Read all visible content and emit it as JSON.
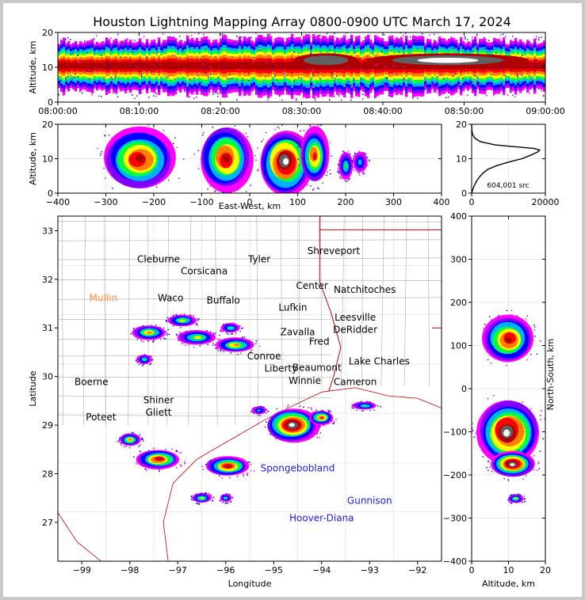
{
  "title": "Houston Lightning Mapping Array 0800-0900 UTC March 17, 2024",
  "colors": {
    "background": "#c8c8c8",
    "panel": "#ffffff",
    "density_scale": [
      "#ff00ff",
      "#8000ff",
      "#0000ff",
      "#00b0ff",
      "#00ff40",
      "#ffff00",
      "#ff8000",
      "#ff0000",
      "#b00000",
      "#606060",
      "#ffffff"
    ],
    "city_label": "#000000",
    "origin_city_label": "#ff8c40",
    "offshore_label": "#1a1aff",
    "state_line": "#cc0000",
    "county_line": "#aaaaaa"
  },
  "chart_data": [
    {
      "type": "heatmap",
      "panel": "altitude-time",
      "xlabel": "",
      "ylabel": "Altitude, km",
      "xticks": [
        "08:00:00",
        "08:10:00",
        "08:20:00",
        "08:30:00",
        "08:40:00",
        "08:50:00",
        "09:00:00"
      ],
      "ylim": [
        0,
        20
      ],
      "yticks": [
        "0",
        "10",
        "20"
      ],
      "x_minutes": [
        0,
        60
      ],
      "band": [
        {
          "minute": 0,
          "center_km": 10.5,
          "half_width_km": 7
        },
        {
          "minute": 15,
          "center_km": 10.5,
          "half_width_km": 7.5
        },
        {
          "minute": 30,
          "center_km": 10.5,
          "half_width_km": 8
        },
        {
          "minute": 45,
          "center_km": 10.5,
          "half_width_km": 7.5
        },
        {
          "minute": 60,
          "center_km": 10.5,
          "half_width_km": 7
        }
      ],
      "hotspots": [
        {
          "minute": 48,
          "altitude_km": 12,
          "half_width_min": 10,
          "half_height_km": 2,
          "level": 10
        },
        {
          "minute": 33,
          "altitude_km": 12,
          "half_width_min": 4,
          "half_height_km": 2,
          "level": 9
        }
      ]
    },
    {
      "type": "heatmap",
      "panel": "altitude-east-west",
      "xlabel": "East-West, km",
      "ylabel": "Altitude, km",
      "xlim": [
        -400,
        400
      ],
      "xticks": [
        "−400",
        "−300",
        "−200",
        "−100",
        "0",
        "100",
        "200",
        "300",
        "400"
      ],
      "ylim": [
        0,
        20
      ],
      "yticks": [
        "0",
        "10",
        "20"
      ],
      "cells": [
        {
          "x": -230,
          "y": 10,
          "rx": 75,
          "ry": 9,
          "peak": 8
        },
        {
          "x": -50,
          "y": 10,
          "rx": 55,
          "ry": 9.5,
          "peak": 8
        },
        {
          "x": 75,
          "y": 9,
          "rx": 55,
          "ry": 9.5,
          "peak": 10
        },
        {
          "x": 135,
          "y": 11,
          "rx": 30,
          "ry": 8,
          "peak": 7
        },
        {
          "x": 200,
          "y": 8,
          "rx": 15,
          "ry": 4,
          "peak": 4
        },
        {
          "x": 230,
          "y": 9,
          "rx": 15,
          "ry": 3,
          "peak": 3
        }
      ]
    },
    {
      "type": "line",
      "panel": "altitude-histogram",
      "xlim": [
        0,
        22000
      ],
      "xticks": [
        "0",
        "20000"
      ],
      "ylim": [
        0,
        20
      ],
      "yticks": [
        "0",
        "10",
        "20"
      ],
      "annotation": "604,001 src",
      "profile_alt_km": [
        0,
        1,
        2,
        3,
        4,
        5,
        6,
        7,
        8,
        9,
        10,
        11,
        12,
        12.5,
        13,
        14,
        15,
        16,
        17,
        18,
        19,
        20
      ],
      "profile_count": [
        0,
        300,
        700,
        1200,
        1800,
        2600,
        3600,
        5000,
        7500,
        11000,
        15000,
        17500,
        19800,
        20300,
        18500,
        7000,
        2500,
        900,
        300,
        100,
        30,
        0
      ]
    },
    {
      "type": "heatmap",
      "panel": "plan-view-map",
      "xlabel": "Longitude",
      "ylabel": "Latitude",
      "xlim": [
        -99.5,
        -91.5
      ],
      "ylim": [
        26.2,
        33.3
      ],
      "xticks": [
        "−99",
        "−98",
        "−97",
        "−96",
        "−95",
        "−94",
        "−93",
        "−92"
      ],
      "yticks": [
        "27",
        "28",
        "29",
        "30",
        "31",
        "32",
        "33"
      ],
      "cells": [
        {
          "lon": -97.6,
          "lat": 30.9,
          "rx": 0.35,
          "ry": 0.15,
          "peak": 6
        },
        {
          "lon": -96.9,
          "lat": 31.15,
          "rx": 0.3,
          "ry": 0.12,
          "peak": 5
        },
        {
          "lon": -96.6,
          "lat": 30.8,
          "rx": 0.4,
          "ry": 0.15,
          "peak": 5
        },
        {
          "lon": -95.8,
          "lat": 30.65,
          "rx": 0.4,
          "ry": 0.15,
          "peak": 6
        },
        {
          "lon": -95.9,
          "lat": 31.0,
          "rx": 0.2,
          "ry": 0.1,
          "peak": 4
        },
        {
          "lon": -97.7,
          "lat": 30.35,
          "rx": 0.15,
          "ry": 0.1,
          "peak": 4
        },
        {
          "lon": -94.6,
          "lat": 29.0,
          "rx": 0.55,
          "ry": 0.35,
          "peak": 10
        },
        {
          "lon": -94.0,
          "lat": 29.15,
          "rx": 0.25,
          "ry": 0.15,
          "peak": 7
        },
        {
          "lon": -93.1,
          "lat": 29.4,
          "rx": 0.25,
          "ry": 0.08,
          "peak": 4
        },
        {
          "lon": -97.4,
          "lat": 28.3,
          "rx": 0.45,
          "ry": 0.2,
          "peak": 8
        },
        {
          "lon": -95.95,
          "lat": 28.15,
          "rx": 0.45,
          "ry": 0.2,
          "peak": 8
        },
        {
          "lon": -98.0,
          "lat": 28.7,
          "rx": 0.22,
          "ry": 0.13,
          "peak": 6
        },
        {
          "lon": -96.5,
          "lat": 27.5,
          "rx": 0.2,
          "ry": 0.1,
          "peak": 5
        },
        {
          "lon": -96.0,
          "lat": 27.5,
          "rx": 0.12,
          "ry": 0.08,
          "peak": 4
        },
        {
          "lon": -95.3,
          "lat": 29.3,
          "rx": 0.15,
          "ry": 0.08,
          "peak": 3
        }
      ],
      "cities": [
        {
          "name": "Cleburne",
          "lon": -97.4,
          "lat": 32.35,
          "role": "city"
        },
        {
          "name": "Tyler",
          "lon": -95.3,
          "lat": 32.35,
          "role": "city"
        },
        {
          "name": "Shreveport",
          "lon": -93.75,
          "lat": 32.52,
          "role": "city"
        },
        {
          "name": "Corsicana",
          "lon": -96.45,
          "lat": 32.1,
          "role": "city"
        },
        {
          "name": "Center",
          "lon": -94.2,
          "lat": 31.8,
          "role": "city"
        },
        {
          "name": "Natchitoches",
          "lon": -93.1,
          "lat": 31.72,
          "role": "city"
        },
        {
          "name": "Mullin",
          "lon": -98.55,
          "lat": 31.55,
          "role": "origin"
        },
        {
          "name": "Waco",
          "lon": -97.15,
          "lat": 31.55,
          "role": "city"
        },
        {
          "name": "Buffalo",
          "lon": -96.05,
          "lat": 31.5,
          "role": "city"
        },
        {
          "name": "Lufkin",
          "lon": -94.6,
          "lat": 31.35,
          "role": "city"
        },
        {
          "name": "Leesville",
          "lon": -93.3,
          "lat": 31.15,
          "role": "city"
        },
        {
          "name": "DeRidder",
          "lon": -93.3,
          "lat": 30.9,
          "role": "city"
        },
        {
          "name": "Zavalla",
          "lon": -94.5,
          "lat": 30.85,
          "role": "city"
        },
        {
          "name": "Fred",
          "lon": -94.05,
          "lat": 30.65,
          "role": "city"
        },
        {
          "name": "Conroe",
          "lon": -95.2,
          "lat": 30.35,
          "role": "city"
        },
        {
          "name": "Lake Charles",
          "lon": -92.8,
          "lat": 30.25,
          "role": "city"
        },
        {
          "name": "Liberty",
          "lon": -94.85,
          "lat": 30.1,
          "role": "city"
        },
        {
          "name": "Beaumont",
          "lon": -94.1,
          "lat": 30.12,
          "role": "city"
        },
        {
          "name": "Winnie",
          "lon": -94.35,
          "lat": 29.85,
          "role": "city"
        },
        {
          "name": "Cameron",
          "lon": -93.3,
          "lat": 29.82,
          "role": "city"
        },
        {
          "name": "Boerne",
          "lon": -98.8,
          "lat": 29.82,
          "role": "city"
        },
        {
          "name": "Shiner",
          "lon": -97.4,
          "lat": 29.45,
          "role": "city"
        },
        {
          "name": "Poteet",
          "lon": -98.6,
          "lat": 29.1,
          "role": "city"
        },
        {
          "name": "Gliett",
          "lon": -97.4,
          "lat": 29.2,
          "role": "city"
        },
        {
          "name": "Spongebobland",
          "lon": -94.5,
          "lat": 28.05,
          "role": "offshore"
        },
        {
          "name": "Gunnison",
          "lon": -93.0,
          "lat": 27.38,
          "role": "offshore"
        },
        {
          "name": "Hoover-Diana",
          "lon": -94.0,
          "lat": 27.02,
          "role": "offshore"
        }
      ]
    },
    {
      "type": "heatmap",
      "panel": "north-south-altitude",
      "xlabel": "Altitude, km",
      "ylabel": "North-South, km",
      "xlim": [
        0,
        20
      ],
      "xticks": [
        "0",
        "10",
        "20"
      ],
      "ylim": [
        -400,
        400
      ],
      "yticks": [
        "−400",
        "−300",
        "−200",
        "−100",
        "0",
        "100",
        "200",
        "300",
        "400"
      ],
      "cells": [
        {
          "alt": 10,
          "ns": 115,
          "ra": 7,
          "rn": 55,
          "peak": 8
        },
        {
          "alt": 10,
          "ns": -100,
          "ra": 8.5,
          "rn": 75,
          "peak": 10
        },
        {
          "alt": 11,
          "ns": -175,
          "ra": 6,
          "rn": 30,
          "peak": 10
        },
        {
          "alt": 12,
          "ns": -255,
          "ra": 2,
          "rn": 10,
          "peak": 5
        }
      ]
    }
  ]
}
